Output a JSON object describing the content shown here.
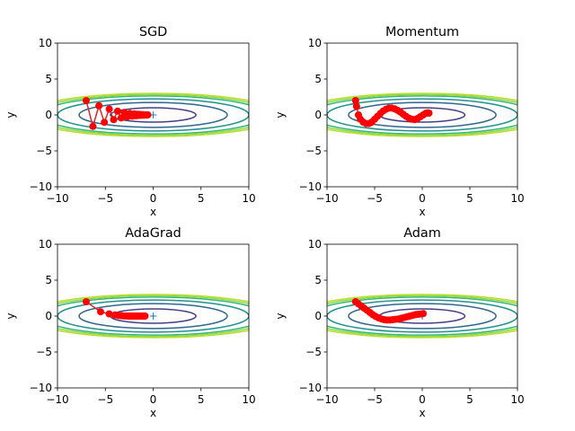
{
  "figure": {
    "background": "#ffffff"
  },
  "contour_colors": [
    "#433e85",
    "#30678d",
    "#21918c",
    "#35b779",
    "#8fd744",
    "#b5de2b"
  ],
  "contour_levels": [
    1,
    3,
    5,
    7,
    8,
    9
  ],
  "path_color": "#d62728",
  "marker_color": "#ff0000",
  "minimum_marker_color": "#1f77b4",
  "chart_data": [
    {
      "type": "line",
      "title": "SGD",
      "xlabel": "x",
      "ylabel": "y",
      "xlim": [
        -10,
        10
      ],
      "ylim": [
        -10,
        10
      ],
      "xticks": [
        -10,
        -5,
        0,
        5,
        10
      ],
      "yticks": [
        -10,
        -5,
        0,
        5,
        10
      ],
      "xtick_labels": [
        "−10",
        "−5",
        "0",
        "5",
        "10"
      ],
      "ytick_labels": [
        "−10",
        "−5",
        "0",
        "5",
        "10"
      ],
      "function": "f(x, y) = x^2/20 + y^2",
      "start": [
        -7.0,
        2.0
      ],
      "path": {
        "x": [
          -7.0,
          -6.3,
          -5.67,
          -5.103,
          -4.593,
          -4.133,
          -3.72,
          -3.348,
          -3.013,
          -2.712,
          -2.441,
          -2.197,
          -1.977,
          -1.779,
          -1.601,
          -1.441,
          -1.297,
          -1.167,
          -1.051,
          -0.946,
          -0.851,
          -0.766,
          -0.689,
          -0.62,
          -0.558
        ],
        "y": [
          2.0,
          -1.6,
          1.28,
          -1.024,
          0.819,
          -0.655,
          0.524,
          -0.419,
          0.336,
          -0.268,
          0.215,
          -0.172,
          0.137,
          -0.11,
          0.088,
          -0.07,
          0.056,
          -0.045,
          0.036,
          -0.029,
          0.023,
          -0.018,
          0.015,
          -0.012,
          0.009
        ]
      }
    },
    {
      "type": "line",
      "title": "Momentum",
      "xlabel": "x",
      "ylabel": "y",
      "xlim": [
        -10,
        10
      ],
      "ylim": [
        -10,
        10
      ],
      "xticks": [
        -10,
        -5,
        0,
        5,
        10
      ],
      "yticks": [
        -10,
        -5,
        0,
        5,
        10
      ],
      "xtick_labels": [
        "−10",
        "−5",
        "0",
        "5",
        "10"
      ],
      "ytick_labels": [
        "−10",
        "−5",
        "0",
        "5",
        "10"
      ],
      "function": "f(x, y) = x^2/20 + y^2",
      "start": [
        -7.0,
        2.0
      ],
      "path": {
        "x": [
          -7.0,
          -6.9,
          -6.7,
          -6.5,
          -6.2,
          -5.9,
          -5.6,
          -5.3,
          -5.0,
          -4.7,
          -4.4,
          -4.1,
          -3.8,
          -3.5,
          -3.2,
          -2.9,
          -2.6,
          -2.3,
          -2.0,
          -1.7,
          -1.4,
          -1.1,
          -0.8,
          -0.5,
          -0.2,
          0.1,
          0.4,
          0.6,
          0.7
        ],
        "y": [
          2.0,
          1.2,
          0.0,
          -0.6,
          -1.0,
          -1.2,
          -1.2,
          -1.0,
          -0.6,
          -0.2,
          0.2,
          0.55,
          0.8,
          0.95,
          0.95,
          0.85,
          0.65,
          0.4,
          0.1,
          -0.2,
          -0.45,
          -0.6,
          -0.65,
          -0.5,
          -0.25,
          0.0,
          0.25,
          0.3,
          0.25
        ]
      }
    },
    {
      "type": "line",
      "title": "AdaGrad",
      "xlabel": "x",
      "ylabel": "y",
      "xlim": [
        -10,
        10
      ],
      "ylim": [
        -10,
        10
      ],
      "xticks": [
        -10,
        -5,
        0,
        5,
        10
      ],
      "yticks": [
        -10,
        -5,
        0,
        5,
        10
      ],
      "xtick_labels": [
        "−10",
        "−5",
        "0",
        "5",
        "10"
      ],
      "ytick_labels": [
        "−10",
        "−5",
        "0",
        "5",
        "10"
      ],
      "function": "f(x, y) = x^2/20 + y^2",
      "start": [
        -7.0,
        2.0
      ],
      "path": {
        "x": [
          -7.0,
          -5.5,
          -4.6,
          -4.0,
          -3.6,
          -3.3,
          -3.05,
          -2.85,
          -2.65,
          -2.48,
          -2.32,
          -2.17,
          -2.03,
          -1.9,
          -1.77,
          -1.65,
          -1.53,
          -1.42,
          -1.31,
          -1.21,
          -1.11,
          -1.02,
          -0.93,
          -0.85
        ],
        "y": [
          2.0,
          0.6,
          0.3,
          0.15,
          0.08,
          0.04,
          0.02,
          0.01,
          0.005,
          0.0,
          0.0,
          0.0,
          0.0,
          0.0,
          0.0,
          0.0,
          0.0,
          0.0,
          0.0,
          0.0,
          0.0,
          0.0,
          0.0,
          0.0
        ]
      }
    },
    {
      "type": "line",
      "title": "Adam",
      "xlabel": "x",
      "ylabel": "y",
      "xlim": [
        -10,
        10
      ],
      "ylim": [
        -10,
        10
      ],
      "xticks": [
        -10,
        -5,
        0,
        5,
        10
      ],
      "yticks": [
        -10,
        -5,
        0,
        5,
        10
      ],
      "xtick_labels": [
        "−10",
        "−5",
        "0",
        "5",
        "10"
      ],
      "ytick_labels": [
        "−10",
        "−5",
        "0",
        "5",
        "10"
      ],
      "function": "f(x, y) = x^2/20 + y^2",
      "start": [
        -7.0,
        2.0
      ],
      "path": {
        "x": [
          -7.0,
          -6.7,
          -6.4,
          -6.1,
          -5.8,
          -5.5,
          -5.2,
          -4.9,
          -4.6,
          -4.3,
          -4.0,
          -3.7,
          -3.4,
          -3.1,
          -2.8,
          -2.5,
          -2.2,
          -1.9,
          -1.6,
          -1.3,
          -1.0,
          -0.7,
          -0.4,
          -0.1,
          0.1
        ],
        "y": [
          2.0,
          1.7,
          1.4,
          1.1,
          0.8,
          0.5,
          0.2,
          -0.05,
          -0.25,
          -0.4,
          -0.5,
          -0.55,
          -0.55,
          -0.5,
          -0.45,
          -0.4,
          -0.3,
          -0.2,
          -0.1,
          0.0,
          0.1,
          0.2,
          0.25,
          0.3,
          0.35
        ]
      }
    }
  ]
}
